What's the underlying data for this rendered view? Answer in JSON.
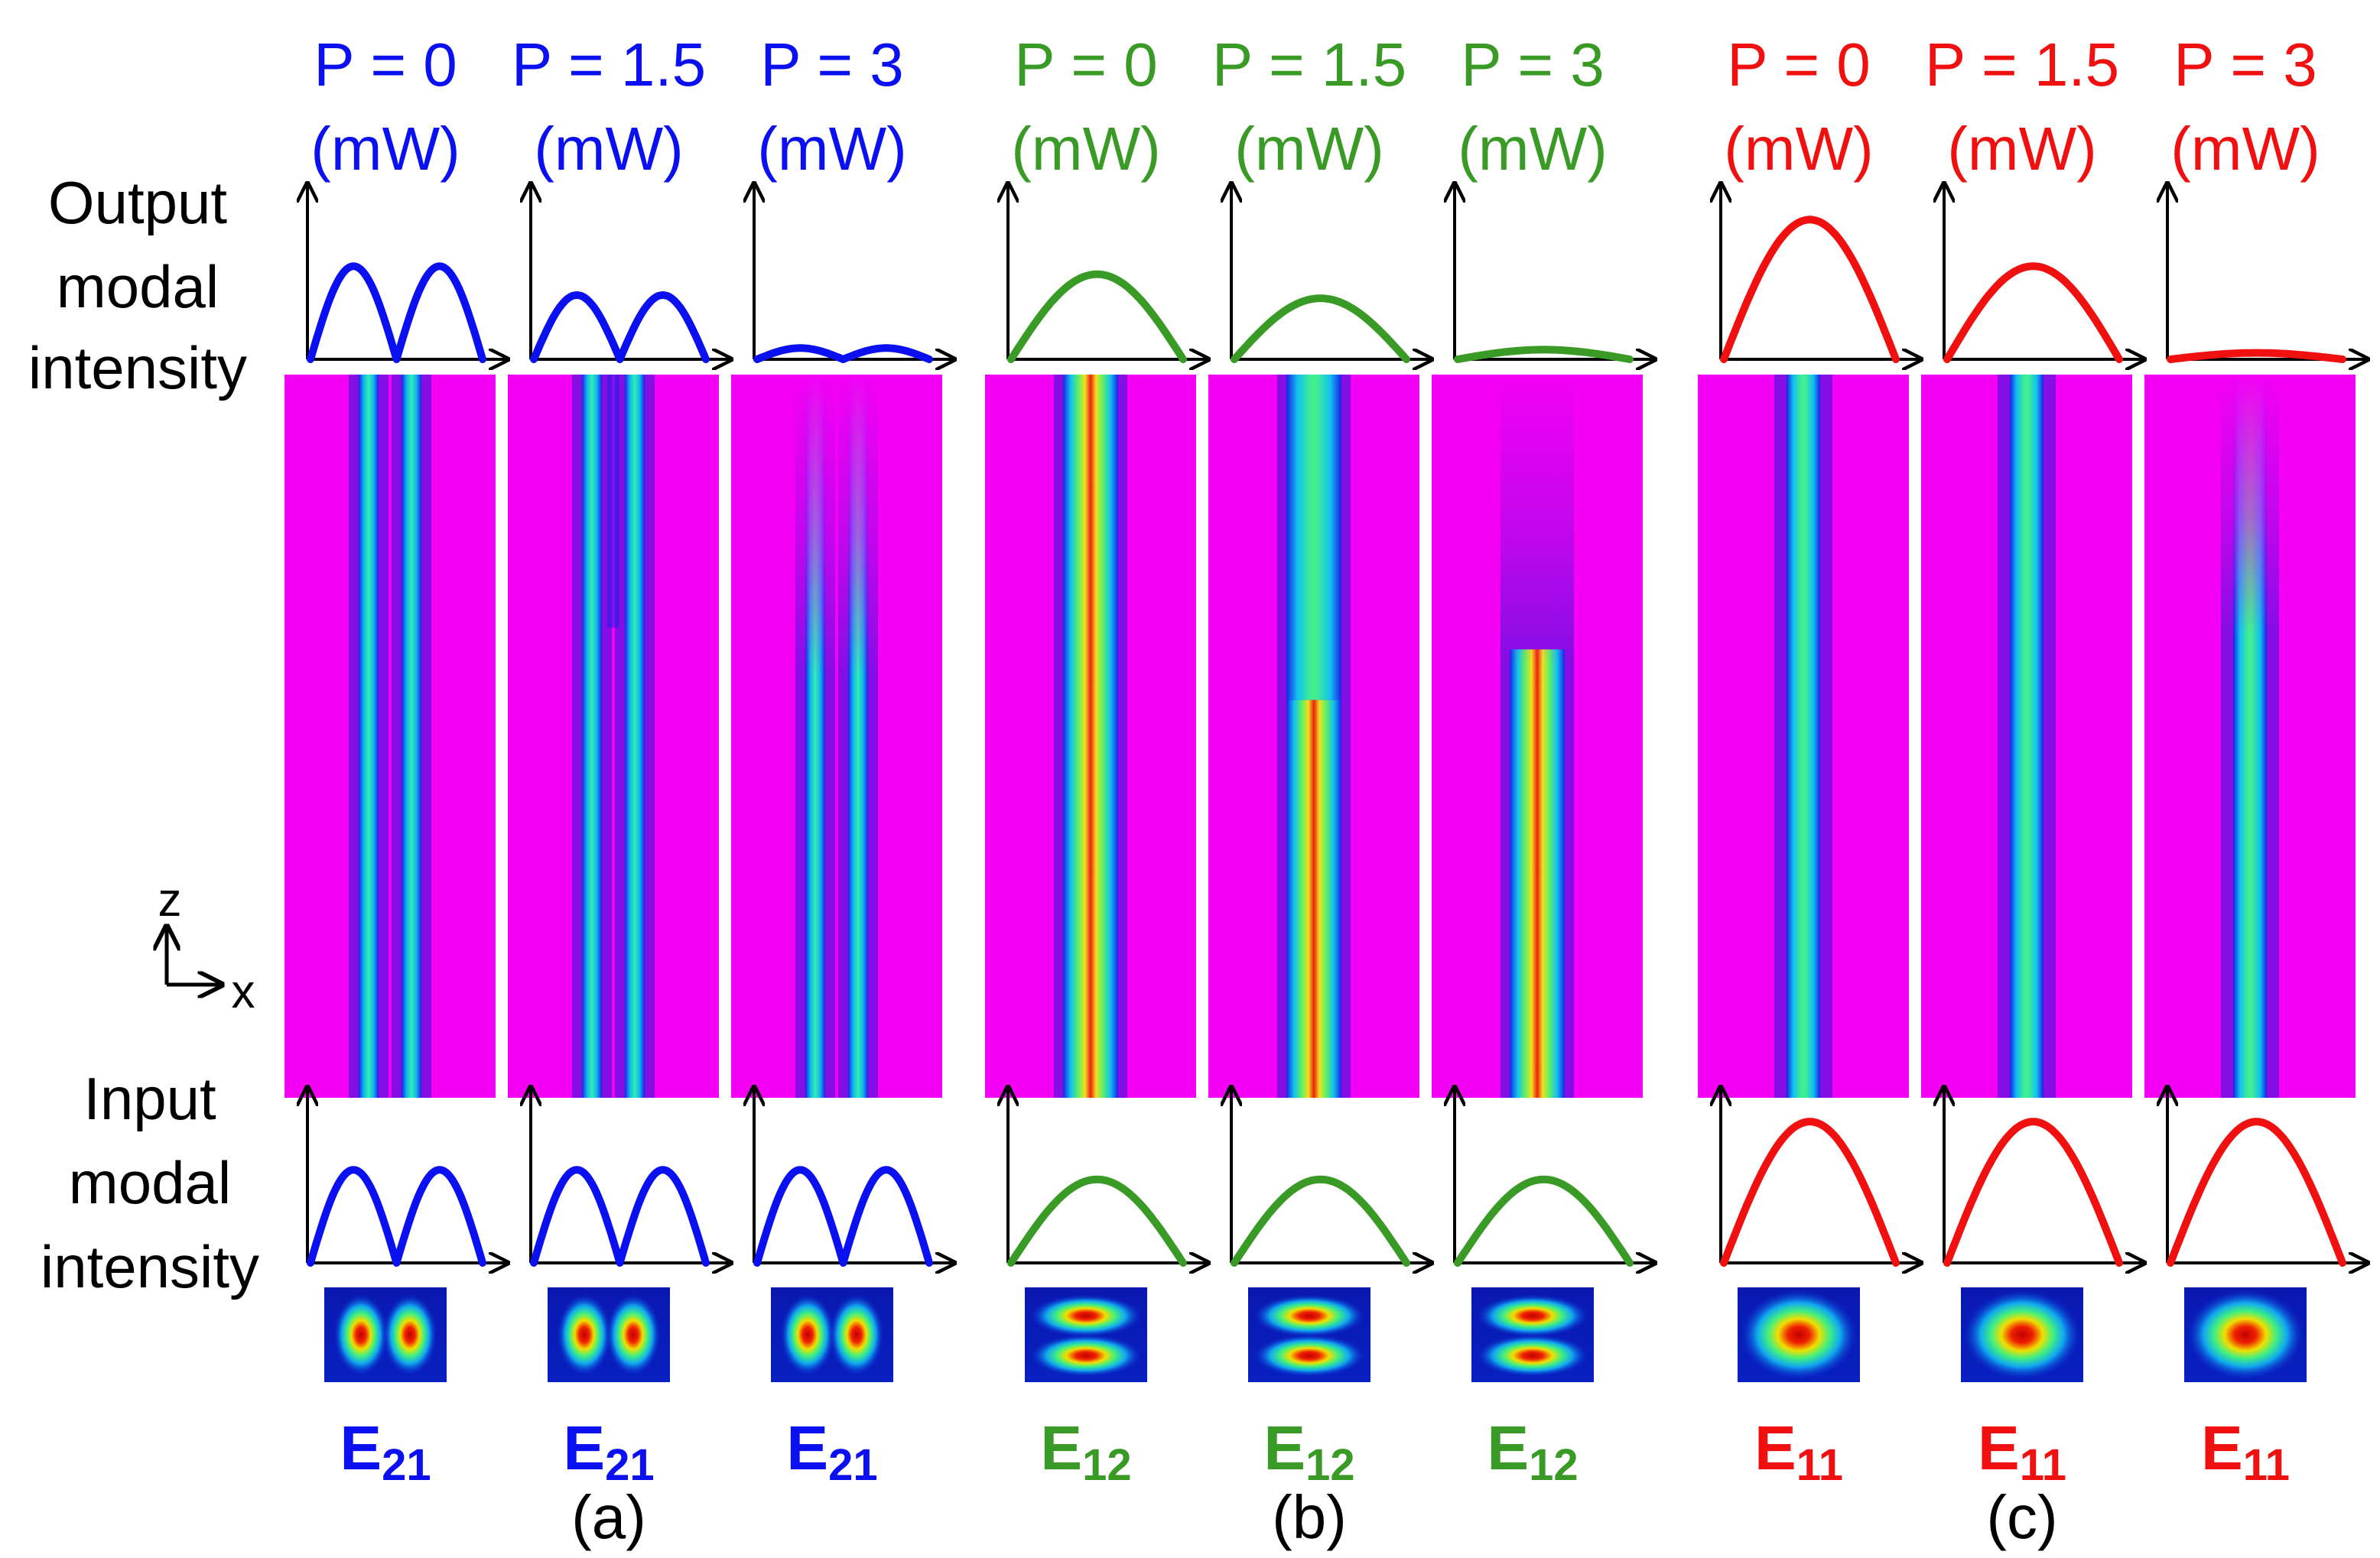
{
  "figure": {
    "side_labels": {
      "output_lines": [
        "Output",
        "modal",
        "intensity"
      ],
      "input_lines": [
        "Input",
        "modal",
        "intensity"
      ],
      "axis_z": "z",
      "axis_x": "x"
    },
    "unit_label": "(mW)",
    "groups": [
      {
        "id": "a",
        "caption": "(a)",
        "color": "#0a10f0",
        "mode_letter": "E",
        "mode_index": "21",
        "mode_type": "two-lobe-horizontal",
        "columns": [
          {
            "power_label": "P = 0",
            "output_amplitude": 0.58,
            "input_amplitude": 0.58
          },
          {
            "power_label": "P = 1.5",
            "output_amplitude": 0.4,
            "input_amplitude": 0.58
          },
          {
            "power_label": "P = 3",
            "output_amplitude": 0.07,
            "input_amplitude": 0.58
          }
        ]
      },
      {
        "id": "b",
        "caption": "(b)",
        "color": "#3a9a26",
        "mode_letter": "E",
        "mode_index": "12",
        "mode_type": "two-lobe-vertical",
        "columns": [
          {
            "power_label": "P = 0",
            "output_amplitude": 0.53,
            "input_amplitude": 0.52
          },
          {
            "power_label": "P = 1.5",
            "output_amplitude": 0.38,
            "input_amplitude": 0.52
          },
          {
            "power_label": "P = 3",
            "output_amplitude": 0.06,
            "input_amplitude": 0.52
          }
        ]
      },
      {
        "id": "c",
        "caption": "(c)",
        "color": "#f01010",
        "mode_letter": "E",
        "mode_index": "11",
        "mode_type": "single-lobe",
        "columns": [
          {
            "power_label": "P = 0",
            "output_amplitude": 0.87,
            "input_amplitude": 0.88
          },
          {
            "power_label": "P = 1.5",
            "output_amplitude": 0.58,
            "input_amplitude": 0.88
          },
          {
            "power_label": "P = 3",
            "output_amplitude": 0.04,
            "input_amplitude": 0.88
          }
        ]
      }
    ]
  }
}
